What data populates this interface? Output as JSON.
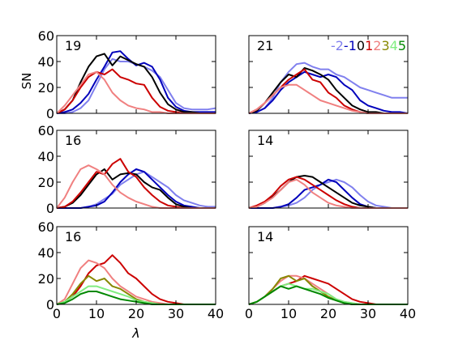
{
  "chart_data": {
    "type": "line",
    "ylabel": "SN",
    "xlabel": "λ",
    "xlim": [
      0,
      40
    ],
    "ylim": [
      0,
      60
    ],
    "xticks": [
      0,
      10,
      20,
      30,
      40
    ],
    "yticks": [
      0,
      20,
      40,
      60
    ],
    "grid": false,
    "legend": {
      "placement": "top-right of upper-right panel",
      "entries": [
        {
          "label": "-2",
          "color": "#8080ee"
        },
        {
          "label": "-1",
          "color": "#0000bb"
        },
        {
          "label": "0",
          "color": "#000000"
        },
        {
          "label": "1",
          "color": "#cc0000"
        },
        {
          "label": "2",
          "color": "#f08080"
        },
        {
          "label": "3",
          "color": "#888800"
        },
        {
          "label": "4",
          "color": "#80ee80"
        },
        {
          "label": "5",
          "color": "#008800"
        }
      ]
    },
    "x": [
      0,
      2,
      4,
      6,
      8,
      10,
      12,
      14,
      16,
      18,
      20,
      22,
      24,
      26,
      28,
      30,
      32,
      34,
      36,
      38,
      40
    ],
    "panels": [
      {
        "annotation": "19",
        "series": [
          {
            "key": "-2",
            "values": [
              0,
              0,
              1,
              4,
              10,
              22,
              34,
              42,
              40,
              40,
              38,
              36,
              33,
              28,
              18,
              8,
              4,
              3,
              3,
              3,
              4
            ]
          },
          {
            "key": "-1",
            "values": [
              0,
              1,
              3,
              8,
              15,
              26,
              36,
              47,
              48,
              42,
              37,
              39,
              36,
              26,
              12,
              5,
              2,
              1,
              1,
              1,
              1
            ]
          },
          {
            "key": "0",
            "values": [
              0,
              3,
              10,
              24,
              36,
              44,
              46,
              37,
              44,
              41,
              38,
              36,
              28,
              16,
              7,
              3,
              1,
              1,
              0,
              0,
              0
            ]
          },
          {
            "key": "1",
            "values": [
              0,
              3,
              10,
              20,
              28,
              32,
              30,
              34,
              28,
              26,
              23,
              22,
              12,
              5,
              2,
              1,
              0,
              0,
              0,
              0,
              0
            ]
          },
          {
            "key": "2",
            "values": [
              0,
              6,
              14,
              22,
              30,
              32,
              26,
              16,
              10,
              6,
              4,
              3,
              1,
              1,
              0,
              0,
              0,
              0,
              0,
              0,
              0
            ]
          }
        ]
      },
      {
        "annotation": "21",
        "series": [
          {
            "key": "-2",
            "values": [
              0,
              1,
              4,
              12,
              24,
              32,
              38,
              39,
              36,
              34,
              34,
              30,
              28,
              24,
              20,
              18,
              16,
              14,
              12,
              12,
              12
            ]
          },
          {
            "key": "-1",
            "values": [
              0,
              1,
              4,
              10,
              18,
              24,
              28,
              32,
              30,
              28,
              30,
              28,
              22,
              18,
              10,
              6,
              4,
              2,
              1,
              1,
              0
            ]
          },
          {
            "key": "0",
            "values": [
              0,
              2,
              8,
              16,
              24,
              30,
              28,
              35,
              33,
              30,
              26,
              18,
              12,
              6,
              3,
              1,
              1,
              0,
              0,
              0,
              0
            ]
          },
          {
            "key": "1",
            "values": [
              0,
              3,
              8,
              14,
              20,
              26,
              30,
              34,
              26,
              24,
              16,
              12,
              6,
              3,
              1,
              0,
              0,
              0,
              0,
              0,
              0
            ]
          },
          {
            "key": "2",
            "values": [
              0,
              3,
              8,
              14,
              20,
              22,
              22,
              18,
              14,
              10,
              8,
              6,
              4,
              2,
              1,
              0,
              0,
              0,
              0,
              0,
              0
            ]
          }
        ]
      },
      {
        "annotation": "16",
        "series": [
          {
            "key": "-2",
            "values": [
              0,
              0,
              0,
              0,
              1,
              3,
              7,
              11,
              18,
              22,
              26,
              28,
              24,
              20,
              16,
              10,
              6,
              4,
              2,
              1,
              1
            ]
          },
          {
            "key": "-1",
            "values": [
              0,
              0,
              0,
              0,
              1,
              2,
              5,
              12,
              20,
              26,
              30,
              28,
              22,
              16,
              10,
              5,
              2,
              1,
              0,
              0,
              0
            ]
          },
          {
            "key": "0",
            "values": [
              0,
              1,
              4,
              10,
              18,
              26,
              30,
              22,
              26,
              27,
              26,
              20,
              16,
              14,
              8,
              3,
              1,
              0,
              0,
              0,
              0
            ]
          },
          {
            "key": "1",
            "values": [
              0,
              1,
              5,
              12,
              20,
              28,
              26,
              34,
              38,
              28,
              24,
              16,
              10,
              5,
              2,
              1,
              0,
              0,
              0,
              0,
              0
            ]
          },
          {
            "key": "2",
            "values": [
              0,
              8,
              20,
              30,
              33,
              30,
              26,
              18,
              12,
              8,
              5,
              3,
              1,
              0,
              0,
              0,
              0,
              0,
              0,
              0,
              0
            ]
          }
        ]
      },
      {
        "annotation": "14",
        "series": [
          {
            "key": "-2",
            "values": [
              0,
              0,
              0,
              0,
              1,
              2,
              4,
              8,
              14,
              18,
              20,
              22,
              20,
              16,
              10,
              5,
              2,
              1,
              0,
              0,
              0
            ]
          },
          {
            "key": "-1",
            "values": [
              0,
              0,
              0,
              0,
              1,
              3,
              8,
              14,
              16,
              18,
              22,
              20,
              14,
              8,
              3,
              1,
              0,
              0,
              0,
              0,
              0
            ]
          },
          {
            "key": "0",
            "values": [
              0,
              1,
              4,
              9,
              14,
              20,
              24,
              25,
              24,
              20,
              16,
              12,
              8,
              4,
              2,
              1,
              0,
              0,
              0,
              0,
              0
            ]
          },
          {
            "key": "1",
            "values": [
              0,
              2,
              5,
              10,
              17,
              22,
              24,
              22,
              18,
              14,
              10,
              6,
              3,
              1,
              0,
              0,
              0,
              0,
              0,
              0,
              0
            ]
          },
          {
            "key": "2",
            "values": [
              0,
              1,
              4,
              8,
              14,
              20,
              22,
              18,
              12,
              8,
              4,
              2,
              1,
              0,
              0,
              0,
              0,
              0,
              0,
              0,
              0
            ]
          }
        ]
      },
      {
        "annotation": "16",
        "series": [
          {
            "key": "1",
            "values": [
              0,
              2,
              6,
              14,
              24,
              30,
              32,
              38,
              32,
              24,
              20,
              14,
              8,
              4,
              2,
              1,
              0,
              0,
              0,
              0,
              0
            ]
          },
          {
            "key": "2",
            "values": [
              0,
              4,
              16,
              28,
              34,
              32,
              28,
              20,
              14,
              10,
              6,
              4,
              2,
              1,
              0,
              0,
              0,
              0,
              0,
              0,
              0
            ]
          },
          {
            "key": "3",
            "values": [
              0,
              2,
              8,
              16,
              22,
              18,
              20,
              14,
              12,
              8,
              4,
              2,
              1,
              0,
              0,
              0,
              0,
              0,
              0,
              0,
              0
            ]
          },
          {
            "key": "4",
            "values": [
              0,
              2,
              6,
              10,
              14,
              14,
              12,
              10,
              8,
              6,
              3,
              2,
              1,
              0,
              0,
              0,
              0,
              0,
              0,
              0,
              0
            ]
          },
          {
            "key": "5",
            "values": [
              0,
              1,
              4,
              8,
              10,
              10,
              8,
              6,
              4,
              3,
              2,
              1,
              0,
              0,
              0,
              0,
              0,
              0,
              0,
              0,
              0
            ]
          }
        ]
      },
      {
        "annotation": "14",
        "series": [
          {
            "key": "1",
            "values": [
              0,
              2,
              6,
              10,
              14,
              16,
              18,
              22,
              20,
              18,
              16,
              12,
              8,
              4,
              2,
              1,
              0,
              0,
              0,
              0,
              0
            ]
          },
          {
            "key": "2",
            "values": [
              0,
              2,
              6,
              12,
              18,
              22,
              22,
              20,
              16,
              12,
              8,
              4,
              2,
              1,
              0,
              0,
              0,
              0,
              0,
              0,
              0
            ]
          },
          {
            "key": "3",
            "values": [
              0,
              2,
              6,
              12,
              20,
              22,
              18,
              20,
              14,
              10,
              6,
              3,
              1,
              0,
              0,
              0,
              0,
              0,
              0,
              0,
              0
            ]
          },
          {
            "key": "4",
            "values": [
              0,
              2,
              6,
              10,
              14,
              16,
              14,
              12,
              12,
              10,
              8,
              4,
              2,
              1,
              0,
              0,
              0,
              0,
              0,
              0,
              0
            ]
          },
          {
            "key": "5",
            "values": [
              0,
              2,
              6,
              10,
              14,
              12,
              14,
              12,
              10,
              8,
              5,
              3,
              1,
              0,
              0,
              0,
              0,
              0,
              0,
              0,
              0
            ]
          }
        ]
      }
    ]
  }
}
